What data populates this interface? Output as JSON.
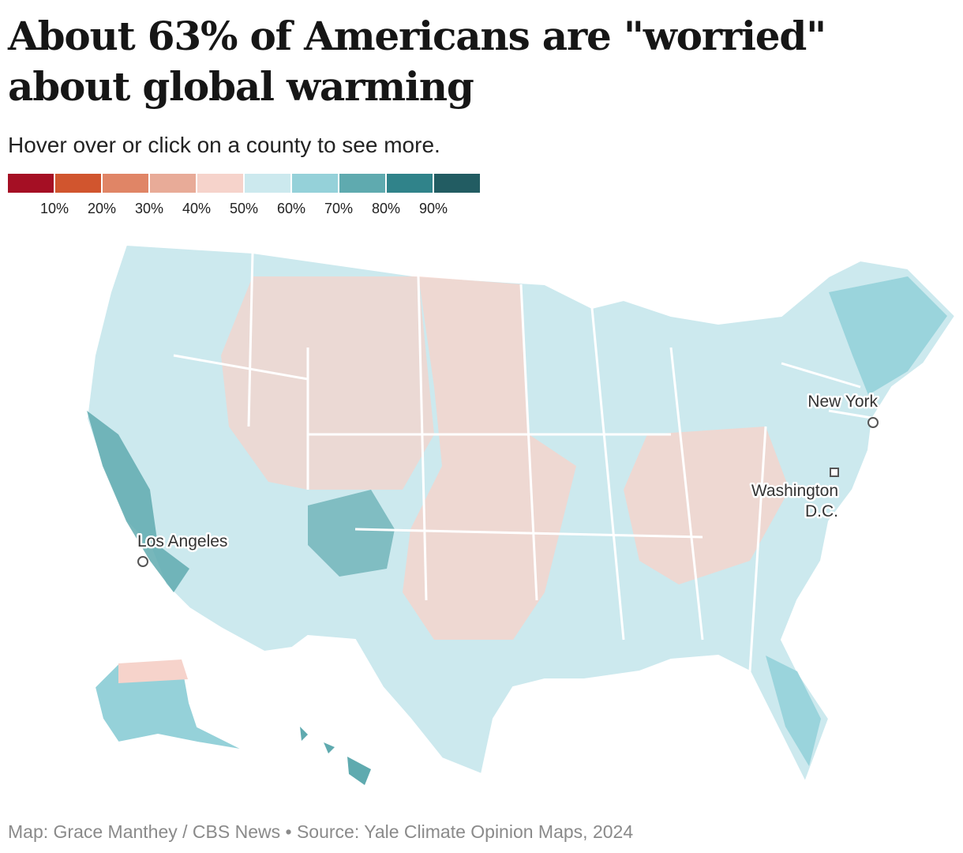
{
  "title": "About 63% of Americans are \"worried\" about global warming",
  "subtitle": "Hover over or click on a county to see more.",
  "legend": {
    "colors": [
      "#a50f24",
      "#d1552e",
      "#e08566",
      "#e8ab98",
      "#f6d3cb",
      "#cce9ee",
      "#95d1d9",
      "#5faaaf",
      "#30838a",
      "#225c62"
    ],
    "ticks": [
      "10%",
      "20%",
      "30%",
      "40%",
      "50%",
      "60%",
      "70%",
      "80%",
      "90%"
    ]
  },
  "cities": [
    {
      "name": "New York",
      "marker": "circle"
    },
    {
      "name": "Washington",
      "name2": "D.C.",
      "marker": "square"
    },
    {
      "name": "Los Angeles",
      "marker": "circle"
    }
  ],
  "footer": "Map: Grace Manthey / CBS News • Source: Yale Climate Opinion Maps, 2024"
}
